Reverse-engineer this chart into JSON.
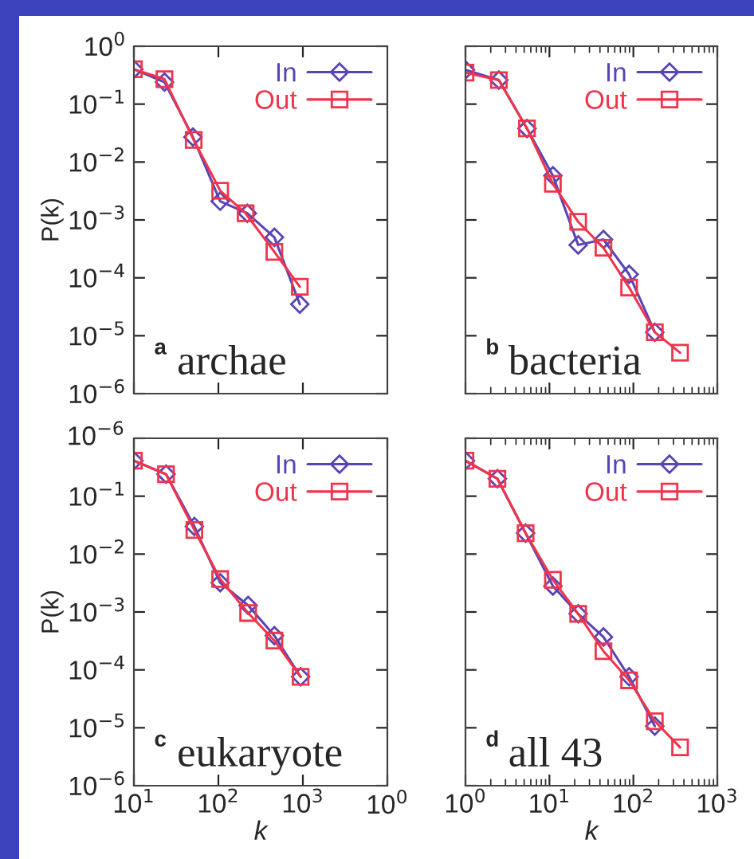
{
  "chart_data": [
    {
      "type": "line",
      "ylabel": "P(k)",
      "annotations": [
        "a",
        "archae"
      ],
      "log": "xy",
      "legend": "top right",
      "tick_labels": "y",
      "xlim": [
        10,
        10000
      ],
      "ylim": [
        1e-06,
        1
      ],
      "xticks": [
        {
          "value": 10,
          "label": null
        },
        {
          "value": 100,
          "label": null
        },
        {
          "value": 1000,
          "label": null
        }
      ],
      "yticks": [
        {
          "value": 1,
          "label": "10$^{0}$"
        },
        {
          "value": 0.1,
          "label": "10$^{−1}$"
        },
        {
          "value": 0.01,
          "label": "10$^{−2}$"
        },
        {
          "value": 0.001,
          "label": "10$^{−3}$"
        },
        {
          "value": 0.0001,
          "label": "10$^{−4}$"
        },
        {
          "value": 1e-05,
          "label": "10$^{−5}$"
        },
        {
          "value": 1e-06,
          "label": "10$^{−6}$"
        }
      ],
      "series": [
        {
          "name": "In",
          "color": "#5a44b4",
          "marker": "diamond",
          "x": [
            10,
            23,
            50,
            105,
            220,
            460,
            920
          ],
          "values": [
            0.4,
            0.24,
            0.027,
            0.0021,
            0.0013,
            0.0005,
            3.5e-05
          ]
        },
        {
          "name": "Out",
          "color": "#f0344c",
          "marker": "square",
          "x": [
            10,
            23,
            51,
            105,
            210,
            460,
            920
          ],
          "values": [
            0.4,
            0.27,
            0.024,
            0.0032,
            0.0013,
            0.00028,
            7e-05
          ]
        }
      ]
    },
    {
      "type": "line",
      "annotations": [
        "b",
        "bacteria"
      ],
      "log": "xy",
      "legend": "top right",
      "tick_labels": false,
      "xlim": [
        1,
        1000
      ],
      "ylim": [
        1e-06,
        1
      ],
      "xticks": [
        {
          "value": 1,
          "label": null
        },
        {
          "value": 10,
          "label": null
        },
        {
          "value": 100,
          "label": null
        },
        {
          "value": 1000,
          "label": null
        }
      ],
      "yticks": [
        {
          "value": 1,
          "label": null
        },
        {
          "value": 0.1,
          "label": null
        },
        {
          "value": 0.01,
          "label": null
        },
        {
          "value": 0.001,
          "label": null
        },
        {
          "value": 0.0001,
          "label": null
        },
        {
          "value": 1e-05,
          "label": null
        },
        {
          "value": 1e-06,
          "label": null
        }
      ],
      "series": [
        {
          "name": "In",
          "color": "#5a44b4",
          "marker": "diamond",
          "x": [
            1,
            2.5,
            5.4,
            11,
            22,
            44,
            89,
            180
          ],
          "values": [
            0.39,
            0.26,
            0.038,
            0.0058,
            0.00037,
            0.00046,
            0.000115,
            1.15e-05
          ]
        },
        {
          "name": "Out",
          "color": "#f0344c",
          "marker": "square",
          "x": [
            1,
            2.5,
            5.4,
            11,
            22,
            44,
            89,
            180,
            360
          ],
          "values": [
            0.35,
            0.26,
            0.038,
            0.0042,
            0.00093,
            0.00033,
            6.8e-05,
            1.15e-05,
            5.1e-06
          ]
        }
      ]
    },
    {
      "type": "line",
      "xlabel": "k",
      "ylabel": "P(k)",
      "annotations": [
        "c",
        "eukaryote",
        "10$^{0}$",
        "10$^{−6}$"
      ],
      "log": "xy",
      "legend": "top right",
      "xlim": [
        10,
        10000
      ],
      "ylim": [
        1e-06,
        1
      ],
      "xticks": [
        {
          "value": 10,
          "label": "10$^{1}$"
        },
        {
          "value": 100,
          "label": "10$^{2}$"
        },
        {
          "value": 1000,
          "label": "10$^{3}$"
        },
        {
          "value": 10000,
          "label": null
        }
      ],
      "yticks": [
        {
          "value": 1,
          "label": null
        },
        {
          "value": 0.1,
          "label": "10$^{−1}$"
        },
        {
          "value": 0.01,
          "label": "10$^{−2}$"
        },
        {
          "value": 0.001,
          "label": "10$^{−3}$"
        },
        {
          "value": 0.0001,
          "label": "10$^{−4}$"
        },
        {
          "value": 1e-05,
          "label": "10$^{−5}$"
        },
        {
          "value": 1e-06,
          "label": "10$^{−6}$"
        }
      ],
      "series": [
        {
          "name": "In",
          "color": "#5a44b4",
          "marker": "diamond",
          "x": [
            10,
            24,
            52,
            105,
            225,
            460,
            940
          ],
          "values": [
            0.41,
            0.24,
            0.03,
            0.0032,
            0.0013,
            0.00039,
            7.6e-05
          ]
        },
        {
          "name": "Out",
          "color": "#f0344c",
          "marker": "square",
          "x": [
            10,
            24,
            52,
            105,
            225,
            460,
            940
          ],
          "values": [
            0.41,
            0.24,
            0.026,
            0.0037,
            0.00096,
            0.00032,
            7.6e-05
          ]
        }
      ]
    },
    {
      "type": "line",
      "xlabel": "k",
      "annotations": [
        "d",
        "all 43"
      ],
      "log": "xy",
      "legend": "top right",
      "tick_labels": "x",
      "xlim": [
        1,
        1000
      ],
      "ylim": [
        1e-06,
        1
      ],
      "xticks": [
        {
          "value": 1,
          "label": "10$^{0}$"
        },
        {
          "value": 10,
          "label": "10$^{1}$"
        },
        {
          "value": 100,
          "label": "10$^{2}$"
        },
        {
          "value": 1000,
          "label": "10$^{3}$"
        }
      ],
      "yticks": [
        {
          "value": 1,
          "label": null
        },
        {
          "value": 0.1,
          "label": null
        },
        {
          "value": 0.01,
          "label": null
        },
        {
          "value": 0.001,
          "label": null
        },
        {
          "value": 0.0001,
          "label": null
        },
        {
          "value": 1e-05,
          "label": null
        },
        {
          "value": 1e-06,
          "label": null
        }
      ],
      "series": [
        {
          "name": "In",
          "color": "#5a44b4",
          "marker": "diamond",
          "x": [
            1,
            2.4,
            5.2,
            11,
            22,
            44,
            89,
            180
          ],
          "values": [
            0.41,
            0.2,
            0.023,
            0.0028,
            0.00093,
            0.00037,
            7.6e-05,
            1.07e-05
          ]
        },
        {
          "name": "Out",
          "color": "#f0344c",
          "marker": "square",
          "x": [
            1,
            2.4,
            5.2,
            11,
            22,
            44,
            89,
            180,
            360
          ],
          "values": [
            0.41,
            0.2,
            0.023,
            0.0036,
            0.00093,
            0.00021,
            6.6e-05,
            1.3e-05,
            4.6e-06
          ]
        }
      ]
    }
  ]
}
